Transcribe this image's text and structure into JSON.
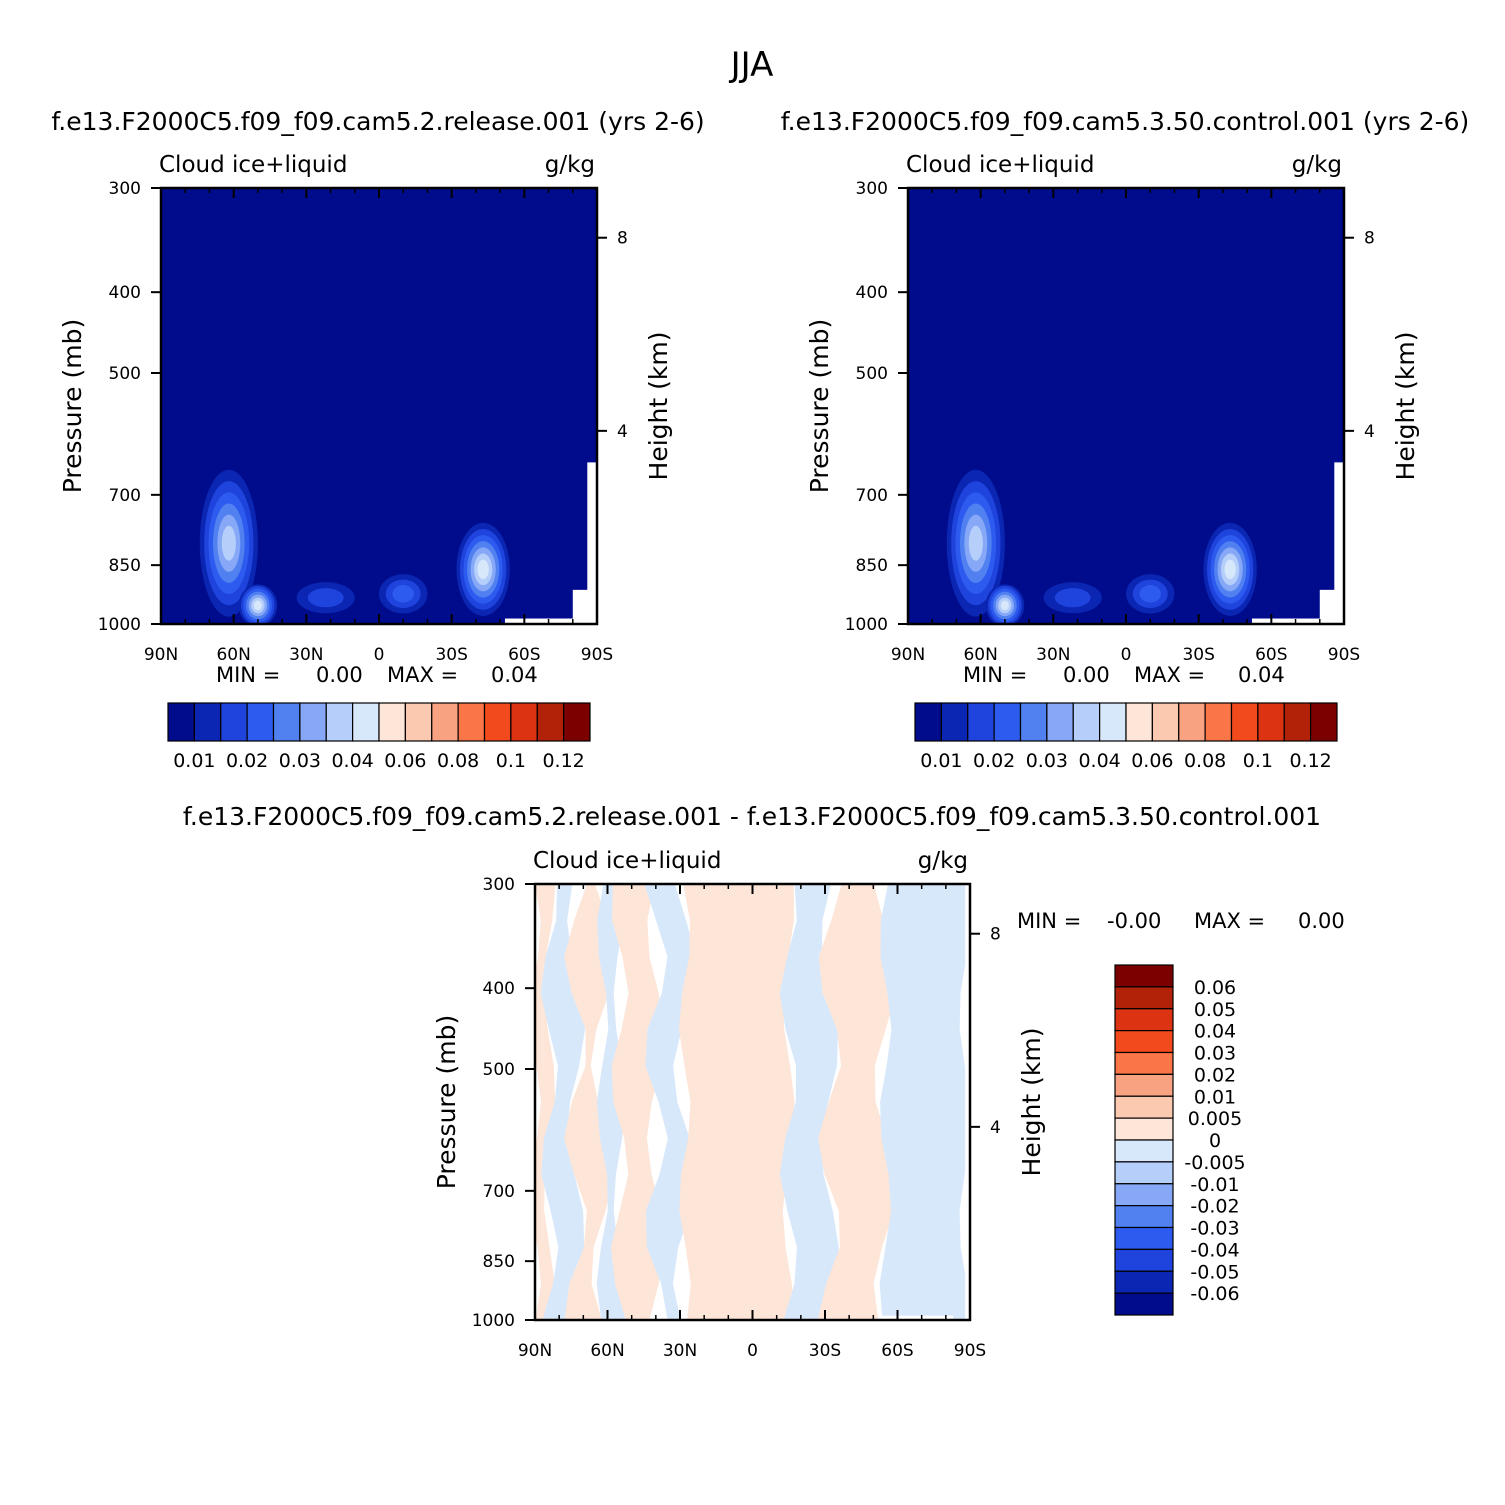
{
  "page_title": "JJA",
  "panels": {
    "left_title": "f.e13.F2000C5.f09_f09.cam5.2.release.001  (yrs 2-6)",
    "right_title": "f.e13.F2000C5.f09_f09.cam5.3.50.control.001  (yrs 2-6)",
    "diff_title": "f.e13.F2000C5.f09_f09.cam5.2.release.001  -  f.e13.F2000C5.f09_f09.cam5.3.50.control.001"
  },
  "colors": {
    "abs_levels": [
      "#000c8c",
      "#0a26b2",
      "#1f44dd",
      "#2d5bef",
      "#5181f0",
      "#86a8f6",
      "#b6cffa",
      "#d8e8fb",
      "#fde5d8",
      "#fbc8b0",
      "#f8a281",
      "#fa7548",
      "#f24a1c",
      "#dc3412",
      "#b22209",
      "#7d0000"
    ],
    "diff_levels": [
      "#000c8c",
      "#0a26b2",
      "#1f44dd",
      "#2d5bef",
      "#5181f0",
      "#86a8f6",
      "#b6cffa",
      "#d8e8fb",
      "#fde5d8",
      "#fbc8b0",
      "#f8a281",
      "#fa7548",
      "#f24a1c",
      "#dc3412",
      "#b22209",
      "#7d0000"
    ]
  },
  "chart_data": [
    {
      "type": "heatmap",
      "name": "left",
      "left_label": "Cloud  ice+liquid",
      "right_label": "g/kg",
      "ylabel": "Pressure (mb)",
      "ylabel2": "Height (km)",
      "xticks": [
        "90N",
        "60N",
        "30N",
        "0",
        "30S",
        "60S",
        "90S"
      ],
      "yticks": [
        300,
        400,
        500,
        700,
        850,
        1000
      ],
      "y2ticks": [
        8,
        4
      ],
      "stats": {
        "min_label": "MIN  =",
        "min": "0.00",
        "max_label": "MAX  =",
        "max": "0.04"
      },
      "colorbar_labels": [
        "0.01",
        "0.02",
        "0.03",
        "0.04",
        "0.06",
        "0.08",
        "0.1",
        "0.12"
      ],
      "blobs": [
        {
          "lat": 62,
          "p": 800,
          "rx": 12,
          "rp": 160,
          "peak": 6
        },
        {
          "lat": 50,
          "p": 950,
          "rx": 8,
          "rp": 60,
          "peak": 7
        },
        {
          "lat": -43,
          "p": 860,
          "rx": 11,
          "rp": 110,
          "peak": 7
        },
        {
          "lat": -10,
          "p": 920,
          "rx": 10,
          "rp": 50,
          "peak": 3
        },
        {
          "lat": 22,
          "p": 930,
          "rx": 12,
          "rp": 40,
          "peak": 2
        }
      ]
    },
    {
      "type": "heatmap",
      "name": "right",
      "left_label": "Cloud  ice+liquid",
      "right_label": "g/kg",
      "ylabel": "Pressure (mb)",
      "ylabel2": "Height (km)",
      "xticks": [
        "90N",
        "60N",
        "30N",
        "0",
        "30S",
        "60S",
        "90S"
      ],
      "yticks": [
        300,
        400,
        500,
        700,
        850,
        1000
      ],
      "y2ticks": [
        8,
        4
      ],
      "stats": {
        "min_label": "MIN  =",
        "min": "0.00",
        "max_label": "MAX  =",
        "max": "0.04"
      },
      "colorbar_labels": [
        "0.01",
        "0.02",
        "0.03",
        "0.04",
        "0.06",
        "0.08",
        "0.1",
        "0.12"
      ],
      "blobs": [
        {
          "lat": 62,
          "p": 800,
          "rx": 12,
          "rp": 160,
          "peak": 6
        },
        {
          "lat": 50,
          "p": 950,
          "rx": 8,
          "rp": 60,
          "peak": 7
        },
        {
          "lat": -43,
          "p": 860,
          "rx": 11,
          "rp": 110,
          "peak": 7
        },
        {
          "lat": -10,
          "p": 920,
          "rx": 10,
          "rp": 50,
          "peak": 3
        },
        {
          "lat": 22,
          "p": 930,
          "rx": 12,
          "rp": 40,
          "peak": 2
        }
      ]
    },
    {
      "type": "heatmap",
      "name": "difference",
      "left_label": "Cloud  ice+liquid",
      "right_label": "g/kg",
      "ylabel": "Pressure (mb)",
      "ylabel2": "Height (km)",
      "xticks": [
        "90N",
        "60N",
        "30N",
        "0",
        "30S",
        "60S",
        "90S"
      ],
      "yticks": [
        300,
        400,
        500,
        700,
        850,
        1000
      ],
      "y2ticks": [
        8,
        4
      ],
      "stats": {
        "min_label": "MIN  =",
        "min": "-0.00",
        "max_label": "MAX  =",
        "max": "0.00"
      },
      "colorbar_labels": [
        "0.06",
        "0.05",
        "0.04",
        "0.03",
        "0.02",
        "0.01",
        "0.005",
        "0",
        "-0.005",
        "-0.01",
        "-0.02",
        "-0.03",
        "-0.04",
        "-0.05",
        "-0.06"
      ],
      "bands": [
        {
          "lat0": 90,
          "lat1": 84,
          "sign": 1
        },
        {
          "lat0": 84,
          "lat1": 73,
          "sign": -1
        },
        {
          "lat0": 73,
          "lat1": 62,
          "sign": 1
        },
        {
          "lat0": 62,
          "lat1": 55,
          "sign": -1
        },
        {
          "lat0": 55,
          "lat1": 40,
          "sign": 1
        },
        {
          "lat0": 40,
          "lat1": 28,
          "sign": -1
        },
        {
          "lat0": 28,
          "lat1": -15,
          "sign": 1
        },
        {
          "lat0": -15,
          "lat1": -32,
          "sign": -1
        },
        {
          "lat0": -32,
          "lat1": -55,
          "sign": 1
        },
        {
          "lat0": -55,
          "lat1": -88,
          "sign": -1
        }
      ]
    }
  ]
}
